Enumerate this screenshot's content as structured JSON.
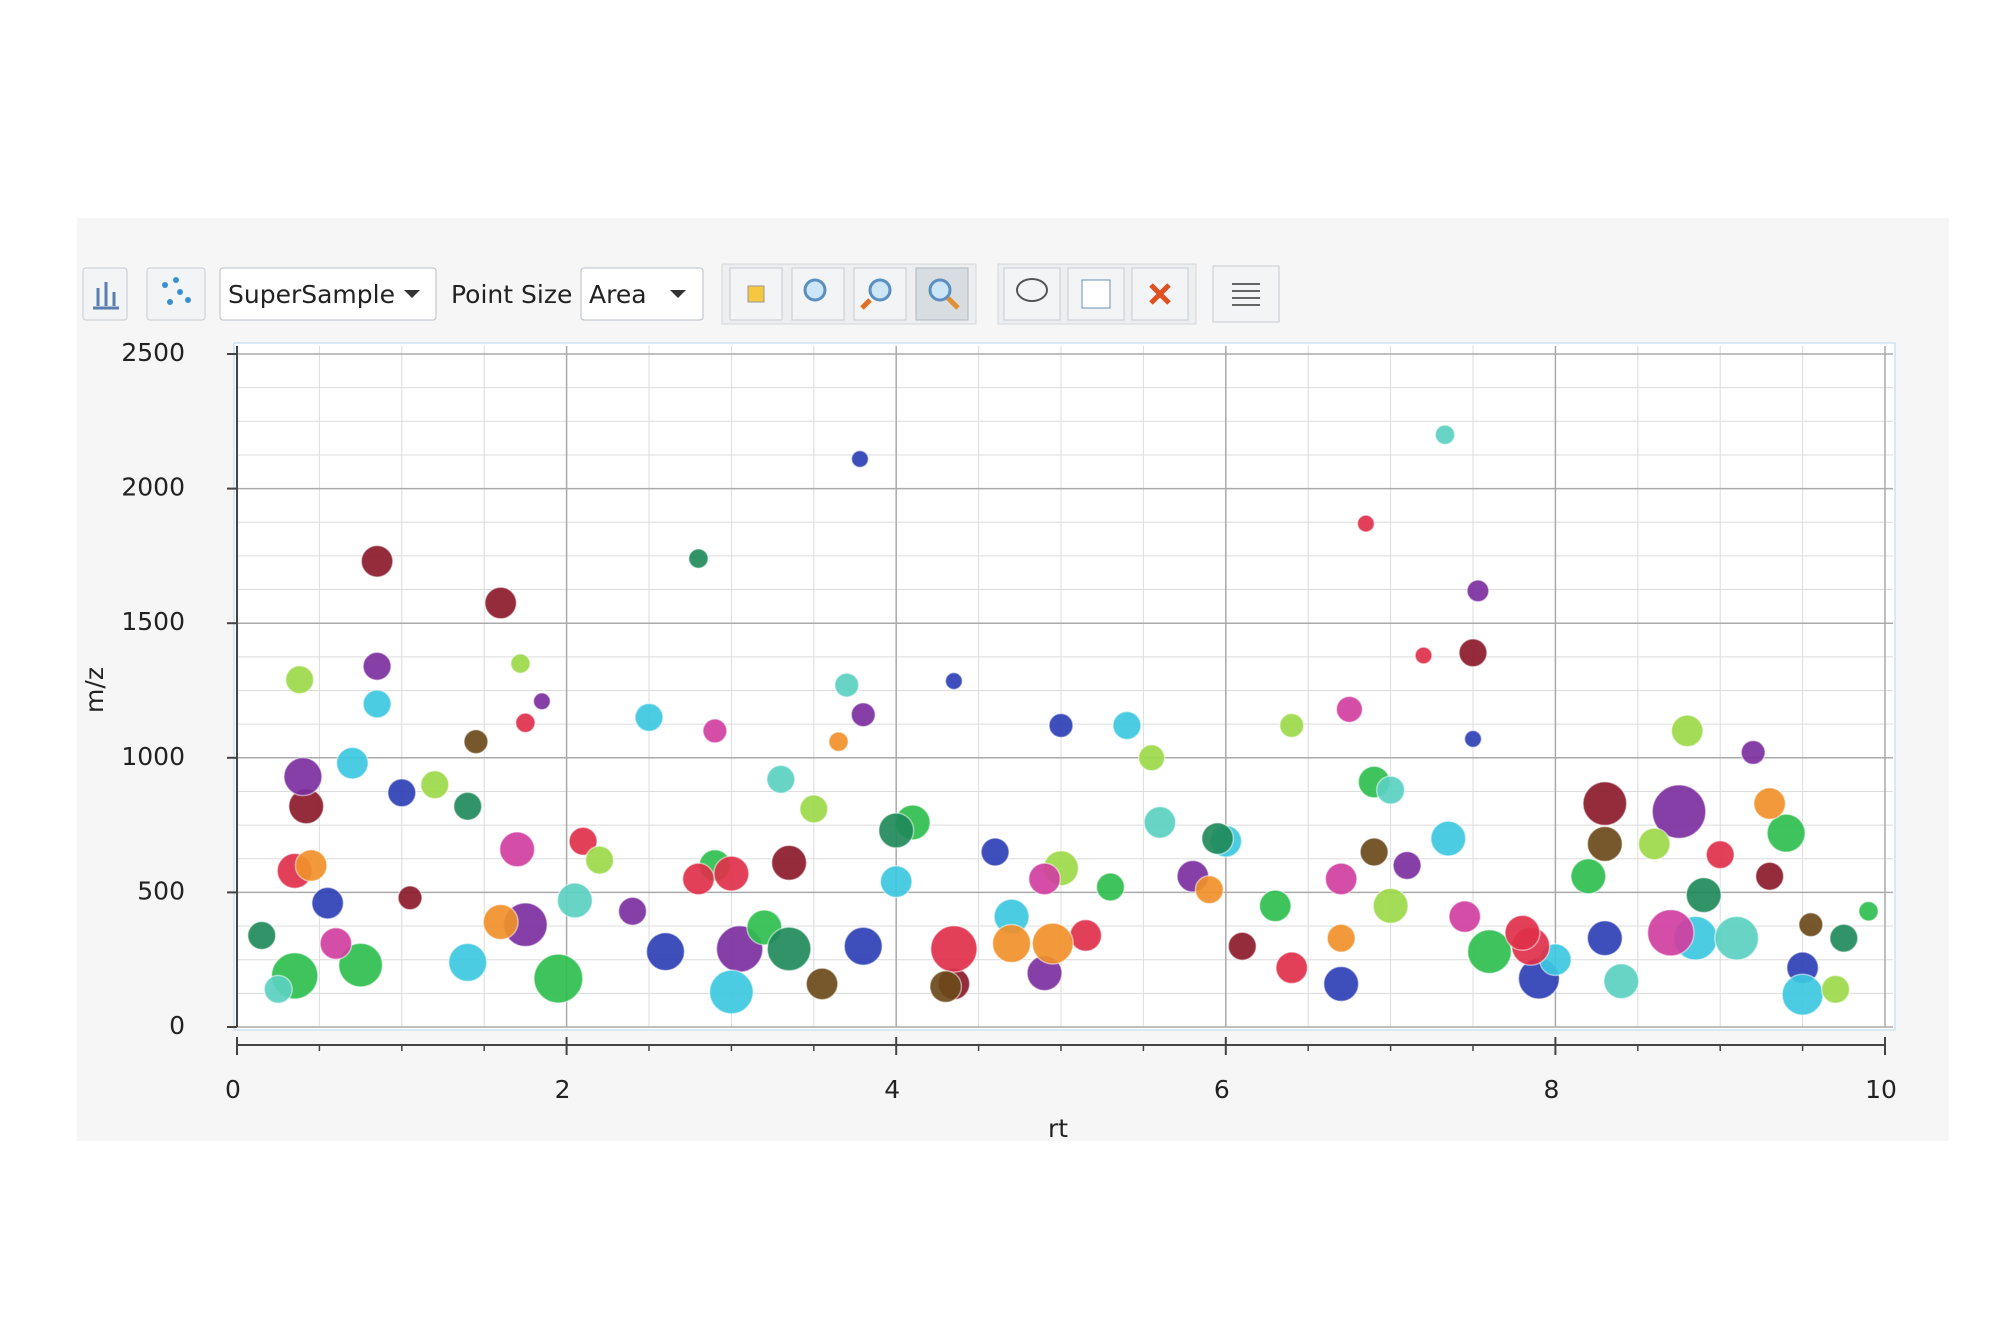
{
  "toolbar": {
    "sample_dropdown": "SuperSample",
    "point_size_label": "Point Size",
    "point_size_dropdown": "Area"
  },
  "chart_data": {
    "type": "scatter",
    "x_label": "rt",
    "y_label": "m/z",
    "xlim": [
      0,
      10
    ],
    "ylim": [
      0,
      2500
    ],
    "xticks": [
      0,
      2,
      4,
      6,
      8,
      10
    ],
    "yticks": [
      0,
      500,
      1000,
      1500,
      2000,
      2500
    ],
    "x_minor_ticks": [
      0.5,
      1,
      1.5,
      2.5,
      3,
      3.5,
      4.5,
      5,
      5.5,
      6.5,
      7,
      7.5,
      8.5,
      9,
      9.5
    ],
    "y_minor_ticks": [
      125,
      250,
      375,
      625,
      750,
      875,
      1125,
      1250,
      1375,
      1625,
      1750,
      1875,
      2125,
      2250,
      2375
    ],
    "grid": true,
    "series": [
      {
        "color": "#8b1a2b",
        "x": [
          0.85,
          1.6,
          7.5,
          0.42,
          3.35,
          4.35,
          8.3,
          1.05,
          6.1,
          9.3
        ],
        "values": [
          1730,
          1575,
          1390,
          820,
          610,
          160,
          830,
          480,
          300,
          560
        ],
        "sizes": [
          12,
          12,
          10,
          14,
          14,
          12,
          20,
          8,
          10,
          10
        ]
      },
      {
        "color": "#2e3fb5",
        "x": [
          3.78,
          4.35,
          7.5,
          1.0,
          2.6,
          3.8,
          5.0,
          6.7,
          7.9,
          8.3,
          9.5,
          0.55,
          4.6
        ],
        "values": [
          2110,
          1285,
          1070,
          870,
          280,
          300,
          1120,
          160,
          180,
          330,
          220,
          460,
          650
        ],
        "sizes": [
          5,
          5,
          5,
          10,
          16,
          16,
          8,
          14,
          18,
          14,
          12,
          12,
          10
        ]
      },
      {
        "color": "#7b2fa0",
        "x": [
          7.53,
          0.85,
          1.85,
          3.8,
          9.2,
          8.75,
          1.75,
          0.4,
          3.05,
          5.8,
          7.1,
          2.4,
          4.9
        ],
        "values": [
          1620,
          1340,
          1210,
          1160,
          1020,
          800,
          380,
          930,
          290,
          560,
          600,
          430,
          200
        ],
        "sizes": [
          7,
          10,
          5,
          8,
          8,
          28,
          20,
          16,
          22,
          12,
          10,
          10,
          14
        ]
      },
      {
        "color": "#2fbf4f",
        "x": [
          0.35,
          1.95,
          3.2,
          2.9,
          4.1,
          6.3,
          7.6,
          9.4,
          8.2,
          0.75,
          5.3,
          6.9,
          9.9
        ],
        "values": [
          190,
          180,
          370,
          600,
          760,
          450,
          280,
          720,
          560,
          230,
          520,
          910,
          430
        ],
        "sizes": [
          22,
          24,
          14,
          12,
          14,
          12,
          20,
          16,
          14,
          20,
          10,
          12,
          6
        ]
      },
      {
        "color": "#3cc8e0",
        "x": [
          0.85,
          5.4,
          2.5,
          1.4,
          3.0,
          4.7,
          6.0,
          7.35,
          8.85,
          9.5,
          0.7,
          4.0,
          8.0
        ],
        "values": [
          1200,
          1120,
          1150,
          240,
          130,
          410,
          690,
          700,
          330,
          120,
          980,
          540,
          250
        ],
        "sizes": [
          10,
          10,
          10,
          16,
          20,
          14,
          12,
          14,
          20,
          18,
          12,
          12,
          12
        ]
      },
      {
        "color": "#e0304a",
        "x": [
          6.85,
          7.2,
          0.35,
          1.75,
          2.8,
          3.0,
          4.35,
          5.15,
          6.4,
          7.85,
          7.8,
          9.0,
          2.1
        ],
        "values": [
          1870,
          1380,
          580,
          1130,
          550,
          570,
          290,
          340,
          220,
          300,
          350,
          640,
          690
        ],
        "sizes": [
          5,
          5,
          14,
          6,
          12,
          14,
          22,
          12,
          12,
          16,
          14,
          10,
          10
        ]
      },
      {
        "color": "#f0902a",
        "x": [
          4.7,
          4.95,
          1.6,
          3.65,
          9.3,
          6.7,
          0.45,
          5.9
        ],
        "values": [
          310,
          310,
          390,
          1060,
          830,
          330,
          600,
          510
        ],
        "sizes": [
          16,
          18,
          14,
          6,
          12,
          10,
          12,
          10
        ]
      },
      {
        "color": "#9cd94a",
        "x": [
          0.38,
          1.72,
          5.55,
          8.8,
          6.4,
          1.2,
          3.5,
          5.0,
          7.0,
          8.6,
          9.7,
          2.2
        ],
        "values": [
          1290,
          1350,
          1000,
          1100,
          1120,
          900,
          810,
          590,
          450,
          680,
          140,
          620
        ],
        "sizes": [
          10,
          6,
          9,
          12,
          8,
          10,
          10,
          14,
          14,
          12,
          10,
          10
        ]
      },
      {
        "color": "#d03fa0",
        "x": [
          6.75,
          1.7,
          8.7,
          4.9,
          2.9,
          6.7,
          0.6,
          7.45
        ],
        "values": [
          1180,
          660,
          350,
          550,
          1100,
          550,
          310,
          410
        ],
        "sizes": [
          9,
          14,
          22,
          12,
          8,
          12,
          12,
          12
        ]
      },
      {
        "color": "#1f8a5a",
        "x": [
          2.8,
          3.35,
          4.0,
          5.95,
          8.9,
          1.4,
          0.15,
          9.75
        ],
        "values": [
          1740,
          290,
          730,
          700,
          490,
          820,
          340,
          330
        ],
        "sizes": [
          6,
          20,
          14,
          12,
          14,
          10,
          10,
          10
        ]
      },
      {
        "color": "#5ad0c0",
        "x": [
          3.7,
          7.33,
          9.1,
          2.05,
          5.6,
          7.0,
          0.25,
          3.3,
          8.4
        ],
        "values": [
          1270,
          2200,
          330,
          470,
          760,
          880,
          140,
          920,
          170
        ],
        "sizes": [
          8,
          6,
          20,
          14,
          12,
          10,
          10,
          10,
          14
        ]
      },
      {
        "color": "#6b4a1a",
        "x": [
          4.3,
          6.9,
          3.55,
          8.3,
          9.55,
          1.45
        ],
        "values": [
          150,
          650,
          160,
          680,
          380,
          1060
        ],
        "sizes": [
          12,
          10,
          12,
          14,
          8,
          8
        ]
      }
    ]
  }
}
